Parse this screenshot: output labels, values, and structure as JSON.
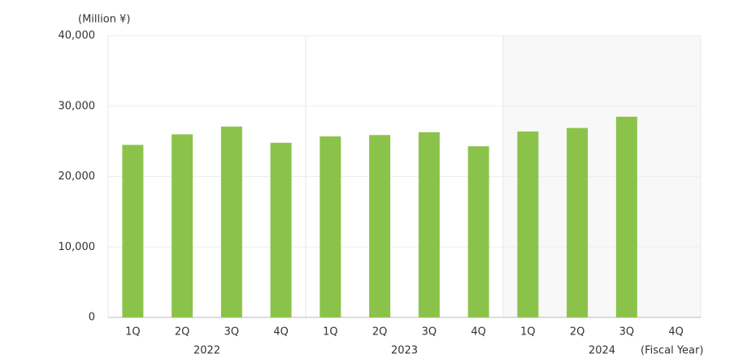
{
  "chart_data": {
    "type": "bar",
    "y_unit_label": "(Million ¥)",
    "x_unit_label": "(Fiscal Year)",
    "categories": [
      "1Q",
      "2Q",
      "3Q",
      "4Q",
      "1Q",
      "2Q",
      "3Q",
      "4Q",
      "1Q",
      "2Q",
      "3Q",
      "4Q"
    ],
    "groups": [
      "2022",
      "2023",
      "2024"
    ],
    "shaded_group_index": 2,
    "values": [
      24500,
      26000,
      27100,
      24800,
      25700,
      25900,
      26300,
      24300,
      26400,
      26900,
      28500,
      null
    ],
    "color": "#8bc34a",
    "ylim": [
      0,
      40000
    ],
    "yticks": [
      0,
      {
        "value": 10000,
        "label": "10,000"
      },
      {
        "value": 20000,
        "label": "20,000"
      },
      {
        "value": 30000,
        "label": "30,000"
      },
      {
        "value": 40000,
        "label": "40,000"
      }
    ]
  }
}
